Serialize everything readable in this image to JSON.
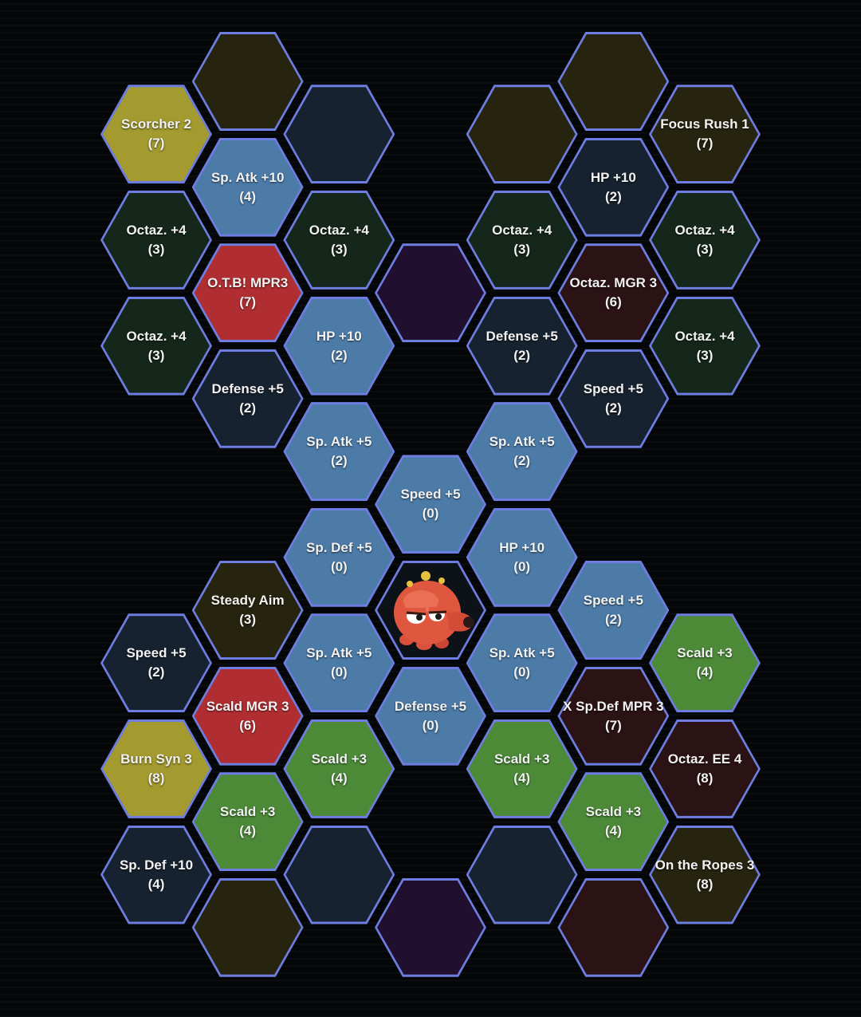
{
  "grid": {
    "tiles": [
      {
        "id": "r0-c2",
        "label": "",
        "cost": "",
        "type": "olive"
      },
      {
        "id": "r0-c6",
        "label": "",
        "cost": "",
        "type": "olive"
      },
      {
        "id": "r1-c1",
        "label": "Scorcher 2",
        "cost": "(7)",
        "type": "yellow"
      },
      {
        "id": "r1-c3",
        "label": "",
        "cost": "",
        "type": "navy"
      },
      {
        "id": "r1-c5",
        "label": "",
        "cost": "",
        "type": "olive"
      },
      {
        "id": "r1-c7",
        "label": "Focus Rush 1",
        "cost": "(7)",
        "type": "olive"
      },
      {
        "id": "r2-c2",
        "label": "Sp. Atk +10",
        "cost": "(4)",
        "type": "blue"
      },
      {
        "id": "r2-c6",
        "label": "HP +10",
        "cost": "(2)",
        "type": "navy"
      },
      {
        "id": "r3-c1",
        "label": "Octaz. +4",
        "cost": "(3)",
        "type": "dgreen"
      },
      {
        "id": "r3-c3",
        "label": "Octaz. +4",
        "cost": "(3)",
        "type": "dgreen"
      },
      {
        "id": "r3-c5",
        "label": "Octaz. +4",
        "cost": "(3)",
        "type": "dgreen"
      },
      {
        "id": "r3-c7",
        "label": "Octaz. +4",
        "cost": "(3)",
        "type": "dgreen"
      },
      {
        "id": "r4-c2",
        "label": "O.T.B! MPR3",
        "cost": "(7)",
        "type": "red"
      },
      {
        "id": "r4-c4",
        "label": "",
        "cost": "",
        "type": "purple"
      },
      {
        "id": "r4-c6",
        "label": "Octaz. MGR 3",
        "cost": "(6)",
        "type": "maroon"
      },
      {
        "id": "r5-c1",
        "label": "Octaz. +4",
        "cost": "(3)",
        "type": "dgreen"
      },
      {
        "id": "r5-c3",
        "label": "HP +10",
        "cost": "(2)",
        "type": "blue"
      },
      {
        "id": "r5-c5",
        "label": "Defense +5",
        "cost": "(2)",
        "type": "navy"
      },
      {
        "id": "r5-c7",
        "label": "Octaz. +4",
        "cost": "(3)",
        "type": "dgreen"
      },
      {
        "id": "r6-c2",
        "label": "Defense +5",
        "cost": "(2)",
        "type": "navy"
      },
      {
        "id": "r6-c6",
        "label": "Speed +5",
        "cost": "(2)",
        "type": "navy"
      },
      {
        "id": "r7-c3",
        "label": "Sp. Atk +5",
        "cost": "(2)",
        "type": "blue"
      },
      {
        "id": "r7-c5",
        "label": "Sp. Atk +5",
        "cost": "(2)",
        "type": "blue"
      },
      {
        "id": "r8-c4",
        "label": "Speed +5",
        "cost": "(0)",
        "type": "blue"
      },
      {
        "id": "r9-c3",
        "label": "Sp. Def +5",
        "cost": "(0)",
        "type": "blue"
      },
      {
        "id": "r9-c5",
        "label": "HP +10",
        "cost": "(0)",
        "type": "blue"
      },
      {
        "id": "r10-c2",
        "label": "Steady Aim",
        "cost": "(3)",
        "type": "olive"
      },
      {
        "id": "r10-c4",
        "label": "",
        "cost": "",
        "type": "center"
      },
      {
        "id": "r10-c6",
        "label": "Speed +5",
        "cost": "(2)",
        "type": "blue"
      },
      {
        "id": "r11-c1",
        "label": "Speed +5",
        "cost": "(2)",
        "type": "navy"
      },
      {
        "id": "r11-c3",
        "label": "Sp. Atk +5",
        "cost": "(0)",
        "type": "blue"
      },
      {
        "id": "r11-c5",
        "label": "Sp. Atk +5",
        "cost": "(0)",
        "type": "blue"
      },
      {
        "id": "r11-c7",
        "label": "Scald +3",
        "cost": "(4)",
        "type": "green"
      },
      {
        "id": "r12-c2",
        "label": "Scald MGR 3",
        "cost": "(6)",
        "type": "red"
      },
      {
        "id": "r12-c4",
        "label": "Defense +5",
        "cost": "(0)",
        "type": "blue"
      },
      {
        "id": "r12-c6",
        "label": "X Sp.Def MPR 3",
        "cost": "(7)",
        "type": "maroon"
      },
      {
        "id": "r13-c1",
        "label": "Burn Syn 3",
        "cost": "(8)",
        "type": "yellow"
      },
      {
        "id": "r13-c3",
        "label": "Scald +3",
        "cost": "(4)",
        "type": "green"
      },
      {
        "id": "r13-c5",
        "label": "Scald +3",
        "cost": "(4)",
        "type": "green"
      },
      {
        "id": "r13-c7",
        "label": "Octaz. EE 4",
        "cost": "(8)",
        "type": "maroon"
      },
      {
        "id": "r14-c2",
        "label": "Scald +3",
        "cost": "(4)",
        "type": "green"
      },
      {
        "id": "r14-c6",
        "label": "Scald +3",
        "cost": "(4)",
        "type": "green"
      },
      {
        "id": "r15-c1",
        "label": "Sp. Def +10",
        "cost": "(4)",
        "type": "navy"
      },
      {
        "id": "r15-c3",
        "label": "",
        "cost": "",
        "type": "navy"
      },
      {
        "id": "r15-c5",
        "label": "",
        "cost": "",
        "type": "navy"
      },
      {
        "id": "r15-c7",
        "label": "On the Ropes 3",
        "cost": "(8)",
        "type": "olive"
      },
      {
        "id": "r16-c2",
        "label": "",
        "cost": "",
        "type": "olive"
      },
      {
        "id": "r16-c4",
        "label": "",
        "cost": "",
        "type": "purple"
      },
      {
        "id": "r16-c6",
        "label": "",
        "cost": "",
        "type": "maroon"
      }
    ]
  },
  "center": {
    "icon": "octillery-sprite-icon"
  }
}
